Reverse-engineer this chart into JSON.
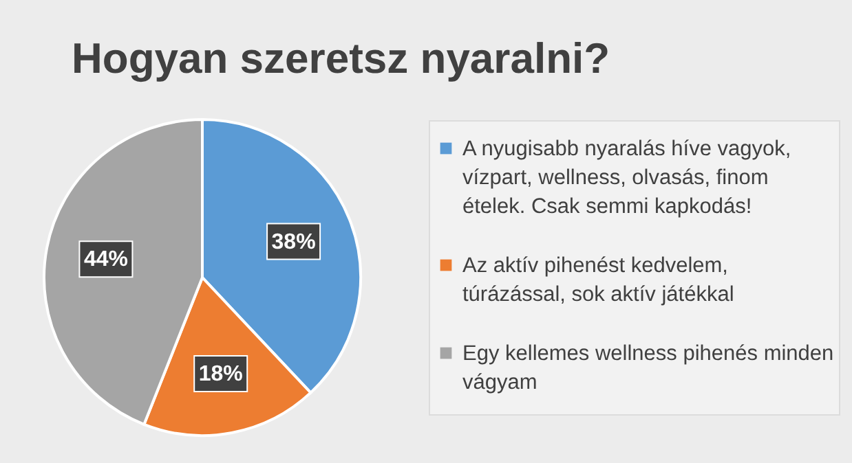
{
  "chart_data": {
    "type": "pie",
    "title": "Hogyan szeretsz nyaralni?",
    "categories": [
      "A nyugisabb nyaralás híve vagyok, vízpart, wellness, olvasás, finom ételek. Csak semmi kapkodás!",
      "Az aktív pihenést kedvelem, túrázással, sok aktív játékkal",
      "Egy kellemes wellness pihenés minden vágyam"
    ],
    "values": [
      38,
      18,
      44
    ],
    "colors": [
      "#5b9bd5",
      "#ed7d31",
      "#a5a5a5"
    ],
    "value_labels": [
      "38%",
      "18%",
      "44%"
    ],
    "legend": "right"
  }
}
